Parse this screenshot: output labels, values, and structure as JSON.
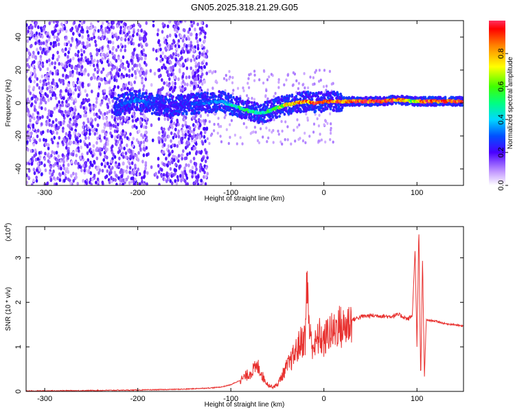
{
  "title": "GN05.2025.318.21.29.G05",
  "chart_data": [
    {
      "type": "heatmap",
      "xlabel": "Height of straight line (km)",
      "ylabel": "Frequency (Hz)",
      "xlim": [
        -320,
        150
      ],
      "ylim": [
        -50,
        50
      ],
      "xticks": [
        -300,
        -200,
        -100,
        0,
        100
      ],
      "yticks": [
        -40,
        -20,
        0,
        20,
        40
      ],
      "colorbar": {
        "label": "Normalized spectral amplitude",
        "range": [
          0,
          1
        ],
        "ticks": [
          0.0,
          0.2,
          0.4,
          0.6,
          0.8
        ]
      },
      "ridge": [
        {
          "x": -225,
          "f": -2,
          "amp": 0.25
        },
        {
          "x": -200,
          "f": 2,
          "amp": 0.35
        },
        {
          "x": -190,
          "f": 0,
          "amp": 0.3
        },
        {
          "x": -170,
          "f": -2,
          "amp": 0.2
        },
        {
          "x": -130,
          "f": 0,
          "amp": 0.3
        },
        {
          "x": -110,
          "f": 1,
          "amp": 0.35
        },
        {
          "x": -100,
          "f": -1,
          "amp": 0.45
        },
        {
          "x": -90,
          "f": -3,
          "amp": 0.5
        },
        {
          "x": -80,
          "f": -5,
          "amp": 0.5
        },
        {
          "x": -70,
          "f": -6,
          "amp": 0.45
        },
        {
          "x": -60,
          "f": -5,
          "amp": 0.5
        },
        {
          "x": -50,
          "f": -3,
          "amp": 0.6
        },
        {
          "x": -40,
          "f": -1,
          "amp": 0.75
        },
        {
          "x": -30,
          "f": 0,
          "amp": 0.8
        },
        {
          "x": -20,
          "f": 1,
          "amp": 0.85
        },
        {
          "x": -10,
          "f": 0,
          "amp": 0.9
        },
        {
          "x": 0,
          "f": 1,
          "amp": 0.85
        },
        {
          "x": 20,
          "f": 1,
          "amp": 0.9
        },
        {
          "x": 40,
          "f": 1,
          "amp": 0.95
        },
        {
          "x": 60,
          "f": 1,
          "amp": 0.95
        },
        {
          "x": 80,
          "f": 2,
          "amp": 0.9
        },
        {
          "x": 95,
          "f": 1,
          "amp": 0.6
        },
        {
          "x": 105,
          "f": 1,
          "amp": 0.9
        },
        {
          "x": 130,
          "f": 1,
          "amp": 0.95
        },
        {
          "x": 150,
          "f": 1,
          "amp": 0.95
        }
      ]
    },
    {
      "type": "line",
      "xlabel": "Height of straight line (km)",
      "ylabel": "SNR (10 * v/v)",
      "scale_label": "(x10^4)",
      "scale_base": "(x10",
      "scale_exp": "4",
      "xlim": [
        -320,
        150
      ],
      "ylim": [
        0,
        3.7
      ],
      "xticks": [
        -300,
        -200,
        -100,
        0,
        100
      ],
      "yticks": [
        0,
        1,
        2,
        3
      ],
      "color": "#e8302e",
      "series": [
        {
          "x": [
            -320,
            -250,
            -200,
            -150,
            -120,
            -110,
            -100,
            -90,
            -80,
            -75,
            -70,
            -65,
            -60,
            -55,
            -50,
            -45,
            -40,
            -35,
            -30,
            -25,
            -20,
            -18,
            -15,
            -10,
            -5,
            0,
            5,
            10,
            15,
            20,
            30,
            40,
            50,
            60,
            70,
            80,
            85,
            90,
            95,
            98,
            100,
            102,
            104,
            106,
            108,
            110,
            120,
            130,
            140,
            150
          ],
          "y": [
            0.01,
            0.02,
            0.03,
            0.05,
            0.08,
            0.1,
            0.15,
            0.25,
            0.4,
            0.5,
            0.55,
            0.3,
            0.15,
            0.1,
            0.15,
            0.35,
            0.55,
            0.7,
            0.9,
            1.1,
            1.2,
            2.5,
            1.2,
            1.0,
            1.25,
            1.1,
            1.35,
            1.3,
            1.5,
            1.4,
            1.6,
            1.68,
            1.7,
            1.7,
            1.68,
            1.72,
            1.68,
            1.62,
            1.7,
            3.2,
            1.0,
            3.7,
            0.2,
            3.0,
            0.3,
            1.6,
            1.58,
            1.52,
            1.5,
            1.46
          ]
        }
      ]
    }
  ]
}
